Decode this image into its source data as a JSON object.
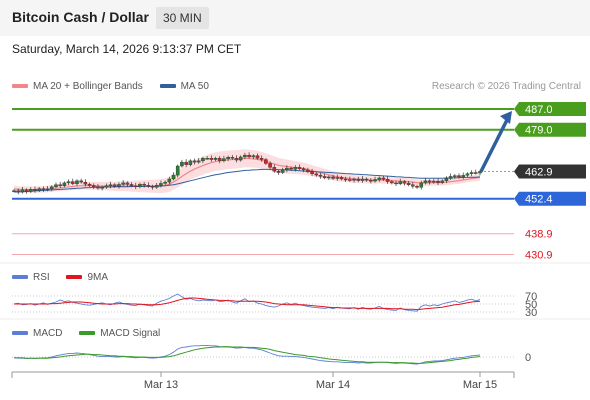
{
  "header": {
    "title": "Bitcoin Cash / Dollar",
    "interval": "30 MIN",
    "datetime": "Saturday, March 14, 2026 9:13:37 PM CET"
  },
  "legend_main": [
    {
      "label": "MA 20 + Bollinger Bands",
      "color": "#f4868a"
    },
    {
      "label": "MA 50",
      "color": "#2f5f9e"
    }
  ],
  "legend_rsi": [
    {
      "label": "RSI",
      "color": "#5b7fd6"
    },
    {
      "label": "9MA",
      "color": "#e0151f"
    }
  ],
  "legend_macd": [
    {
      "label": "MACD",
      "color": "#5b7fd6"
    },
    {
      "label": "MACD Signal",
      "color": "#3c9a2a"
    }
  ],
  "credit": "Research © 2026 Trading Central",
  "colors": {
    "resistance": "#4a9e1e",
    "support": "#2c66d8",
    "target": "#e05060",
    "current": "#333333",
    "arrow": "#2f5f9e",
    "candle_up": "#2e7d32",
    "candle_down": "#c62828"
  },
  "chart_data": {
    "type": "candlestick",
    "ylim": [
      428,
      492
    ],
    "x_ticks": [
      "Mar 13",
      "Mar 14",
      "Mar 15"
    ],
    "price_levels": [
      {
        "value": 487.0,
        "label": "487.0",
        "kind": "resistance"
      },
      {
        "value": 479.0,
        "label": "479.0",
        "kind": "resistance"
      },
      {
        "value": 462.9,
        "label": "462.9",
        "kind": "current"
      },
      {
        "value": 452.4,
        "label": "452.4",
        "kind": "support"
      },
      {
        "value": 438.9,
        "label": "438.9",
        "kind": "target"
      },
      {
        "value": 430.9,
        "label": "430.9",
        "kind": "target"
      }
    ],
    "close": [
      455.5,
      455,
      455.8,
      455.2,
      456,
      455.6,
      456.3,
      455.9,
      456.2,
      457,
      457.8,
      457.4,
      458.5,
      459,
      458.2,
      459.3,
      458.8,
      458,
      457.5,
      457,
      456.5,
      456.8,
      457.4,
      457.8,
      457.2,
      457.9,
      458.5,
      457.9,
      457.4,
      457,
      458,
      457.6,
      457.2,
      456.8,
      457.6,
      458.3,
      458.8,
      460,
      461.5,
      465,
      466.5,
      465.5,
      467,
      466.5,
      467,
      468,
      468,
      467.5,
      468,
      467,
      467.8,
      468.4,
      468,
      467.3,
      468.5,
      469.2,
      468.5,
      469,
      468,
      467.5,
      466,
      464.5,
      463,
      462.5,
      463.5,
      464.2,
      463.8,
      464.5,
      464,
      463.5,
      462.8,
      462,
      461.5,
      461,
      460.5,
      460.8,
      460.2,
      460.6,
      460,
      459.8,
      459.5,
      460,
      459.4,
      460,
      459.5,
      459.2,
      459.8,
      460.4,
      459.9,
      459,
      458.5,
      458.2,
      459,
      458.4,
      457.8,
      457.2,
      456.8,
      458.5,
      459.3,
      458.8,
      459.2,
      458.6,
      459.3,
      460.2,
      461,
      461.3,
      460.8,
      461.4,
      462,
      462.5,
      462.3,
      462.9
    ],
    "ma20": [
      456.2,
      456,
      456,
      455.9,
      455.9,
      455.9,
      456,
      456,
      456.1,
      456.3,
      456.5,
      456.6,
      456.8,
      457,
      457.1,
      457.3,
      457.4,
      457.4,
      457.4,
      457.4,
      457.3,
      457.3,
      457.3,
      457.3,
      457.2,
      457.2,
      457.3,
      457.3,
      457.2,
      457.2,
      457.2,
      457.2,
      457.2,
      457.2,
      457.2,
      457.3,
      457.5,
      458,
      458.8,
      459.8,
      461,
      462,
      463,
      463.8,
      464.5,
      465.2,
      465.8,
      466.3,
      466.7,
      467,
      467.2,
      467.4,
      467.5,
      467.6,
      467.8,
      468,
      467.9,
      467.8,
      467.5,
      467.2,
      466.8,
      466.3,
      465.8,
      465.3,
      465,
      464.8,
      464.6,
      464.4,
      464.2,
      464,
      463.6,
      463.2,
      462.8,
      462.4,
      462,
      461.6,
      461.2,
      460.9,
      460.6,
      460.4,
      460.2,
      460,
      459.9,
      459.8,
      459.7,
      459.6,
      459.6,
      459.6,
      459.6,
      459.5,
      459.4,
      459.3,
      459.2,
      459.1,
      459,
      458.8,
      458.6,
      458.5,
      458.5,
      458.5,
      458.6,
      458.6,
      458.7,
      458.8,
      459,
      459.2,
      459.4,
      459.6,
      459.9,
      460.2,
      460.4,
      460.6
    ],
    "ma50": [
      455,
      455,
      455.1,
      455.2,
      455.3,
      455.4,
      455.5,
      455.6,
      455.7,
      455.8,
      455.9,
      456,
      456.1,
      456.2,
      456.3,
      456.4,
      456.5,
      456.6,
      456.7,
      456.8,
      456.8,
      456.9,
      456.9,
      456.9,
      457,
      457,
      457,
      457,
      457.1,
      457.1,
      457.1,
      457.1,
      457.2,
      457.2,
      457.2,
      457.3,
      457.4,
      457.6,
      457.8,
      458.1,
      458.5,
      458.9,
      459.3,
      459.7,
      460.1,
      460.5,
      460.9,
      461.3,
      461.6,
      461.9,
      462.2,
      462.5,
      462.7,
      462.9,
      463.1,
      463.3,
      463.4,
      463.5,
      463.6,
      463.7,
      463.7,
      463.7,
      463.7,
      463.6,
      463.6,
      463.5,
      463.4,
      463.3,
      463.2,
      463.1,
      463,
      462.9,
      462.8,
      462.7,
      462.6,
      462.5,
      462.4,
      462.3,
      462.2,
      462.1,
      462,
      461.9,
      461.8,
      461.7,
      461.6,
      461.5,
      461.4,
      461.3,
      461.2,
      461.1,
      461,
      460.9,
      460.8,
      460.7,
      460.6,
      460.5,
      460.4,
      460.3,
      460.3,
      460.3,
      460.3,
      460.3,
      460.3,
      460.4,
      460.4,
      460.5,
      460.5,
      460.6,
      460.6,
      460.7,
      460.7,
      460.8
    ],
    "rsi": {
      "levels": [
        70,
        50,
        30
      ],
      "ylim": [
        0,
        100
      ],
      "rsi": [
        50,
        52,
        48,
        49,
        51,
        47,
        50,
        53,
        49,
        52,
        55,
        60,
        56,
        58,
        54,
        52,
        50,
        48,
        47,
        49,
        51,
        53,
        50,
        48,
        52,
        55,
        51,
        49,
        47,
        46,
        50,
        48,
        46,
        45,
        52,
        57,
        60,
        64,
        70,
        75,
        68,
        62,
        64,
        60,
        58,
        60,
        59,
        58,
        60,
        56,
        57,
        60,
        55,
        52,
        58,
        63,
        56,
        58,
        52,
        50,
        46,
        44,
        42,
        45,
        50,
        53,
        49,
        52,
        48,
        46,
        44,
        42,
        41,
        40,
        39,
        41,
        38,
        42,
        40,
        39,
        38,
        41,
        37,
        42,
        38,
        37,
        40,
        44,
        39,
        36,
        35,
        34,
        40,
        36,
        34,
        33,
        32,
        44,
        48,
        45,
        48,
        46,
        50,
        53,
        55,
        58,
        54,
        56,
        60,
        62,
        58,
        61
      ],
      "ma9": [
        50,
        50,
        50,
        50,
        50,
        50,
        50,
        50,
        50,
        51,
        51,
        52,
        53,
        54,
        55,
        55,
        55,
        54,
        53,
        52,
        51,
        50,
        50,
        50,
        50,
        51,
        51,
        51,
        50,
        50,
        49,
        49,
        48,
        48,
        48,
        49,
        51,
        53,
        56,
        59,
        62,
        64,
        65,
        65,
        64,
        63,
        62,
        61,
        60,
        59,
        59,
        58,
        58,
        57,
        57,
        57,
        57,
        57,
        57,
        56,
        55,
        53,
        51,
        50,
        49,
        48,
        48,
        48,
        48,
        48,
        47,
        46,
        45,
        44,
        43,
        42,
        41,
        41,
        40,
        40,
        40,
        40,
        39,
        39,
        39,
        39,
        39,
        39,
        39,
        39,
        38,
        38,
        38,
        37,
        37,
        37,
        36,
        37,
        38,
        39,
        40,
        41,
        42,
        44,
        46,
        48,
        49,
        51,
        53,
        55,
        56,
        57
      ]
    },
    "macd": {
      "zero_label": "0",
      "ylim": [
        -3.5,
        4
      ],
      "macd": [
        -0.2,
        -0.3,
        -0.3,
        -0.4,
        -0.3,
        -0.4,
        -0.3,
        -0.2,
        -0.2,
        0,
        0.3,
        0.5,
        0.7,
        0.9,
        0.9,
        1,
        0.9,
        0.8,
        0.6,
        0.4,
        0.2,
        0.1,
        0.1,
        0.1,
        0,
        0,
        0.1,
        0,
        -0.1,
        -0.2,
        -0.1,
        -0.1,
        -0.2,
        -0.3,
        -0.2,
        0,
        0.2,
        0.6,
        1.2,
        2,
        2.4,
        2.5,
        2.7,
        2.8,
        2.8,
        2.9,
        2.9,
        2.8,
        2.8,
        2.6,
        2.5,
        2.5,
        2.4,
        2.2,
        2.3,
        2.4,
        2.2,
        2.2,
        2,
        1.8,
        1.4,
        1,
        0.6,
        0.3,
        0.2,
        0.2,
        0.1,
        0.1,
        0,
        -0.1,
        -0.3,
        -0.5,
        -0.7,
        -0.9,
        -1,
        -1.1,
        -1.2,
        -1.2,
        -1.3,
        -1.4,
        -1.4,
        -1.4,
        -1.5,
        -1.4,
        -1.5,
        -1.5,
        -1.4,
        -1.3,
        -1.3,
        -1.4,
        -1.5,
        -1.6,
        -1.5,
        -1.5,
        -1.6,
        -1.7,
        -1.8,
        -1.5,
        -1.2,
        -1.1,
        -1,
        -1,
        -0.9,
        -0.7,
        -0.5,
        -0.3,
        -0.2,
        -0.1,
        0.1,
        0.3,
        0.4,
        0.5
      ],
      "signal": [
        -0.2,
        -0.2,
        -0.2,
        -0.3,
        -0.3,
        -0.3,
        -0.3,
        -0.3,
        -0.3,
        -0.2,
        -0.1,
        0,
        0.2,
        0.3,
        0.4,
        0.5,
        0.6,
        0.7,
        0.7,
        0.6,
        0.6,
        0.5,
        0.4,
        0.3,
        0.3,
        0.2,
        0.2,
        0.1,
        0.1,
        0,
        0,
        0,
        -0.1,
        -0.1,
        -0.1,
        -0.1,
        0,
        0.1,
        0.3,
        0.6,
        0.9,
        1.2,
        1.5,
        1.8,
        2,
        2.2,
        2.3,
        2.4,
        2.5,
        2.5,
        2.6,
        2.6,
        2.5,
        2.5,
        2.5,
        2.4,
        2.4,
        2.4,
        2.3,
        2.2,
        2.1,
        1.9,
        1.6,
        1.4,
        1.2,
        1,
        0.8,
        0.6,
        0.5,
        0.4,
        0.2,
        0.1,
        0,
        -0.2,
        -0.3,
        -0.5,
        -0.6,
        -0.7,
        -0.8,
        -0.9,
        -1,
        -1.1,
        -1.2,
        -1.2,
        -1.3,
        -1.3,
        -1.3,
        -1.3,
        -1.3,
        -1.3,
        -1.4,
        -1.4,
        -1.4,
        -1.4,
        -1.5,
        -1.5,
        -1.6,
        -1.6,
        -1.5,
        -1.4,
        -1.3,
        -1.2,
        -1.1,
        -1,
        -0.9,
        -0.7,
        -0.6,
        -0.4,
        -0.3,
        -0.1,
        0,
        0.1
      ]
    }
  }
}
